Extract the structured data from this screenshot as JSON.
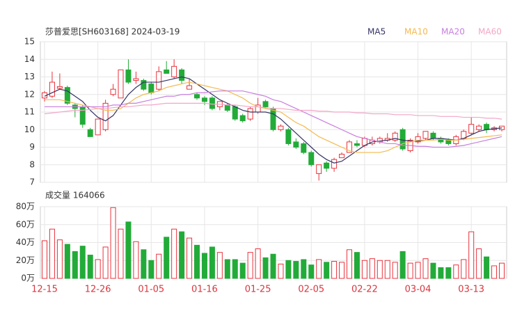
{
  "chart_data": [
    {
      "type": "candlestick",
      "title": "莎普爱思[SH603168] 2024-03-19",
      "ylim": [
        7,
        15
      ],
      "yticks": [
        7,
        8,
        9,
        10,
        11,
        12,
        13,
        14,
        15
      ],
      "grid": true,
      "up_color": "#e8323c",
      "down_color": "#22ab38",
      "open": [
        11.8,
        11.9,
        12.35,
        12.4,
        11.4,
        11.3,
        10.0,
        9.7,
        10.0,
        12.0,
        11.8,
        13.4,
        12.8,
        12.8,
        12.6,
        12.3,
        13.4,
        13.0,
        13.4,
        12.3,
        12.0,
        11.8,
        11.8,
        11.3,
        11.4,
        11.3,
        10.8,
        10.6,
        11.0,
        11.6,
        11.2,
        10.0,
        10.0,
        9.3,
        9.2,
        8.7,
        7.5,
        8.1,
        7.8,
        8.4,
        8.7,
        9.2,
        9.1,
        9.2,
        9.3,
        9.4,
        9.4,
        10.0,
        8.8,
        9.3,
        9.5,
        9.8,
        9.5,
        9.4,
        9.2,
        9.5,
        9.8,
        10.0,
        10.3,
        10.0,
        10.0
      ],
      "close": [
        12.1,
        12.7,
        12.45,
        11.5,
        11.2,
        10.3,
        9.6,
        10.6,
        11.5,
        12.3,
        13.4,
        12.7,
        12.9,
        12.3,
        12.1,
        13.3,
        13.2,
        13.6,
        12.8,
        12.5,
        11.8,
        11.6,
        11.2,
        11.6,
        11.1,
        10.6,
        10.5,
        11.2,
        11.4,
        11.3,
        10.0,
        10.2,
        9.2,
        9.0,
        8.7,
        8.0,
        8.0,
        7.8,
        8.3,
        8.6,
        9.3,
        9.1,
        9.5,
        9.4,
        9.5,
        9.5,
        9.8,
        8.9,
        9.4,
        9.6,
        9.9,
        9.5,
        9.3,
        9.2,
        9.6,
        9.9,
        10.3,
        10.2,
        10.0,
        10.1,
        10.2
      ],
      "high": [
        12.2,
        13.3,
        13.2,
        12.5,
        11.5,
        11.4,
        10.1,
        10.6,
        11.7,
        12.6,
        13.4,
        14.0,
        13.3,
        12.9,
        12.7,
        13.6,
        13.9,
        14.0,
        13.5,
        12.9,
        12.1,
        11.9,
        11.9,
        11.6,
        11.5,
        11.4,
        10.9,
        11.3,
        11.8,
        11.7,
        11.3,
        10.3,
        10.1,
        9.5,
        9.3,
        8.8,
        8.0,
        8.2,
        8.4,
        8.7,
        9.4,
        9.4,
        9.6,
        9.6,
        9.6,
        9.8,
        9.9,
        10.1,
        9.5,
        9.8,
        9.9,
        9.9,
        9.6,
        9.5,
        9.7,
        10.0,
        10.7,
        10.3,
        10.4,
        10.2,
        10.2
      ],
      "low": [
        11.6,
        11.8,
        12.3,
        11.4,
        10.7,
        10.1,
        9.6,
        9.7,
        9.9,
        11.9,
        11.8,
        12.6,
        12.6,
        12.2,
        12.0,
        12.2,
        13.2,
        12.9,
        12.6,
        12.3,
        11.7,
        11.4,
        11.1,
        11.1,
        11.0,
        10.5,
        10.4,
        10.5,
        10.9,
        11.2,
        9.9,
        9.9,
        9.1,
        8.9,
        8.6,
        7.9,
        7.1,
        7.6,
        7.6,
        8.4,
        8.7,
        9.0,
        9.0,
        9.1,
        9.2,
        9.3,
        9.3,
        8.8,
        8.7,
        9.2,
        9.4,
        9.4,
        9.2,
        9.1,
        9.1,
        9.4,
        9.7,
        9.9,
        9.8,
        9.9,
        9.9
      ],
      "series": [
        {
          "name": "MA5",
          "color": "#333366",
          "values": [
            11.9,
            12.1,
            12.3,
            12.2,
            11.9,
            11.6,
            11.1,
            10.7,
            10.5,
            10.8,
            11.4,
            12.0,
            12.4,
            12.7,
            12.7,
            12.7,
            12.8,
            12.9,
            13.0,
            12.9,
            12.6,
            12.3,
            12.0,
            11.7,
            11.5,
            11.3,
            11.1,
            11.0,
            11.0,
            11.0,
            10.9,
            10.6,
            10.2,
            9.8,
            9.4,
            9.0,
            8.6,
            8.3,
            8.1,
            8.2,
            8.5,
            8.8,
            9.1,
            9.3,
            9.35,
            9.4,
            9.5,
            9.4,
            9.35,
            9.35,
            9.4,
            9.5,
            9.5,
            9.45,
            9.4,
            9.5,
            9.7,
            9.9,
            10.0,
            10.05,
            10.1
          ]
        },
        {
          "name": "MA10",
          "color": "#f5b94d",
          "values": [
            11.7,
            11.7,
            11.7,
            11.6,
            11.5,
            11.4,
            11.3,
            11.2,
            11.1,
            11.1,
            11.2,
            11.5,
            11.8,
            12.0,
            12.1,
            12.2,
            12.4,
            12.5,
            12.6,
            12.7,
            12.6,
            12.5,
            12.4,
            12.3,
            12.2,
            12.0,
            11.8,
            11.5,
            11.3,
            11.2,
            11.1,
            11.0,
            10.7,
            10.4,
            10.2,
            9.9,
            9.6,
            9.4,
            9.2,
            9.0,
            8.8,
            8.7,
            8.7,
            8.7,
            8.7,
            8.8,
            9.0,
            9.2,
            9.3,
            9.4,
            9.4,
            9.4,
            9.45,
            9.4,
            9.4,
            9.45,
            9.5,
            9.55,
            9.6,
            9.65,
            9.7
          ]
        },
        {
          "name": "MA20",
          "color": "#c77ee0",
          "values": [
            11.3,
            11.3,
            11.3,
            11.3,
            11.3,
            11.3,
            11.3,
            11.3,
            11.3,
            11.4,
            11.4,
            11.5,
            11.5,
            11.6,
            11.7,
            11.8,
            11.9,
            11.9,
            12.0,
            12.0,
            12.1,
            12.1,
            12.15,
            12.2,
            12.2,
            12.2,
            12.2,
            12.1,
            12.0,
            11.9,
            11.7,
            11.6,
            11.4,
            11.2,
            11.0,
            10.8,
            10.6,
            10.4,
            10.2,
            10.0,
            9.8,
            9.6,
            9.5,
            9.4,
            9.3,
            9.2,
            9.2,
            9.1,
            9.1,
            9.05,
            9.05,
            9.0,
            9.0,
            9.0,
            9.05,
            9.1,
            9.2,
            9.3,
            9.4,
            9.5,
            9.6
          ]
        },
        {
          "name": "MA60",
          "color": "#f3a6c7",
          "values": [
            10.9,
            10.95,
            11.0,
            11.05,
            11.1,
            11.1,
            11.15,
            11.2,
            11.2,
            11.25,
            11.3,
            11.3,
            11.35,
            11.4,
            11.4,
            11.45,
            11.5,
            11.5,
            11.5,
            11.5,
            11.5,
            11.5,
            11.45,
            11.45,
            11.4,
            11.4,
            11.35,
            11.3,
            11.3,
            11.25,
            11.2,
            11.2,
            11.15,
            11.1,
            11.1,
            11.1,
            11.05,
            11.05,
            11.0,
            11.0,
            11.0,
            10.95,
            10.95,
            10.9,
            10.9,
            10.9,
            10.85,
            10.85,
            10.85,
            10.8,
            10.8,
            10.8,
            10.75,
            10.75,
            10.75,
            10.7,
            10.7,
            10.7,
            10.65,
            10.65,
            10.6
          ]
        }
      ]
    },
    {
      "type": "bar",
      "title": "成交量 164066",
      "categories": [
        "12-15",
        null,
        null,
        null,
        null,
        null,
        null,
        "12-26",
        null,
        null,
        null,
        null,
        null,
        null,
        "01-05",
        null,
        null,
        null,
        null,
        null,
        null,
        "01-16",
        null,
        null,
        null,
        null,
        null,
        null,
        "01-25",
        null,
        null,
        null,
        null,
        null,
        null,
        "02-05",
        null,
        null,
        null,
        null,
        null,
        null,
        "02-22",
        null,
        null,
        null,
        null,
        null,
        null,
        "03-04",
        null,
        null,
        null,
        null,
        null,
        null,
        "03-13",
        null,
        null,
        null,
        null
      ],
      "values": [
        42,
        55,
        43,
        38,
        30,
        36,
        26,
        21,
        35,
        79,
        55,
        63,
        41,
        32,
        20,
        27,
        46,
        55,
        52,
        45,
        37,
        28,
        35,
        29,
        21,
        21,
        17,
        29,
        33,
        23,
        27,
        16,
        20,
        19,
        21,
        15,
        21,
        18,
        19,
        18,
        32,
        29,
        20,
        22,
        20,
        20,
        18,
        30,
        17,
        18,
        22,
        17,
        12,
        12,
        15,
        21,
        52,
        33,
        24,
        14,
        17
      ],
      "ylim": [
        0,
        80
      ],
      "yticks": [
        {
          "value": 0,
          "label": "0万"
        },
        {
          "value": 20,
          "label": "20万"
        },
        {
          "value": 40,
          "label": "40万"
        },
        {
          "value": 60,
          "label": "60万"
        },
        {
          "value": 80,
          "label": "80万"
        }
      ],
      "grid": true
    }
  ]
}
